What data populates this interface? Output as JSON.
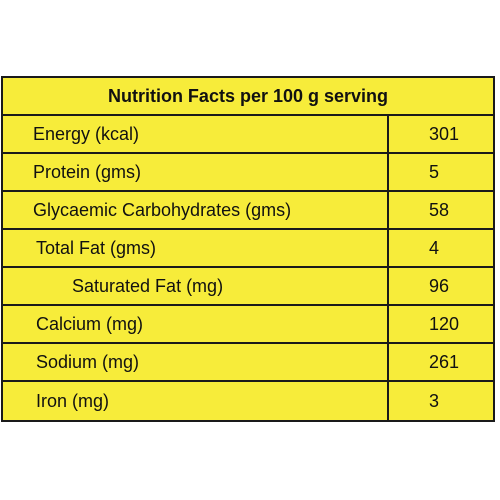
{
  "table": {
    "title": "Nutrition Facts per 100 g serving",
    "rows": [
      {
        "label": "Energy (kcal)",
        "value": "301"
      },
      {
        "label": "Protein (gms)",
        "value": "5"
      },
      {
        "label": "Glycaemic Carbohydrates (gms)",
        "value": "58"
      },
      {
        "label": "Total Fat (gms)",
        "value": "4"
      },
      {
        "label": "Saturated Fat (mg)",
        "value": "96"
      },
      {
        "label": "Calcium (mg)",
        "value": "120"
      },
      {
        "label": "Sodium (mg)",
        "value": "261"
      },
      {
        "label": "Iron (mg)",
        "value": "3"
      }
    ]
  }
}
